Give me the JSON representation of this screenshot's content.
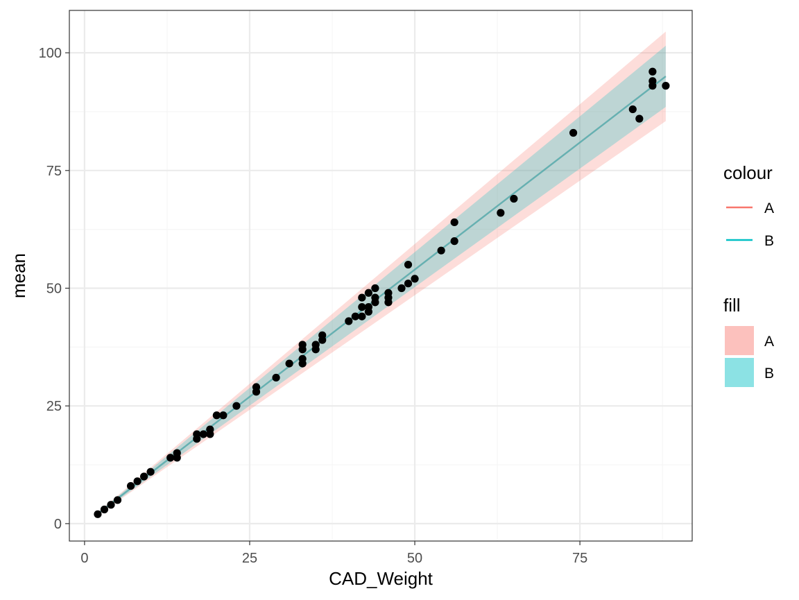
{
  "chart_data": {
    "type": "scatter",
    "xlabel": "CAD_Weight",
    "ylabel": "mean",
    "x_ticks": [
      "0",
      "25",
      "50",
      "75"
    ],
    "y_ticks": [
      "0",
      "25",
      "50",
      "75",
      "100"
    ],
    "x_tick_values": [
      0,
      25,
      50,
      75
    ],
    "y_tick_values": [
      0,
      25,
      50,
      75,
      100
    ],
    "xlim": [
      -2.3,
      92
    ],
    "ylim": [
      -3.7,
      109
    ],
    "grid": true,
    "legend_position": "right",
    "points": [
      [
        2,
        2
      ],
      [
        3,
        3
      ],
      [
        4,
        4
      ],
      [
        5,
        5
      ],
      [
        7,
        8
      ],
      [
        8,
        9
      ],
      [
        9,
        10
      ],
      [
        10,
        11
      ],
      [
        13,
        14
      ],
      [
        14,
        14
      ],
      [
        14,
        15
      ],
      [
        17,
        18
      ],
      [
        17,
        19
      ],
      [
        18,
        19
      ],
      [
        19,
        19
      ],
      [
        19,
        20
      ],
      [
        20,
        23
      ],
      [
        21,
        23
      ],
      [
        23,
        25
      ],
      [
        26,
        28
      ],
      [
        26,
        29
      ],
      [
        29,
        31
      ],
      [
        31,
        34
      ],
      [
        33,
        34
      ],
      [
        33,
        35
      ],
      [
        33,
        37
      ],
      [
        33,
        38
      ],
      [
        35,
        37
      ],
      [
        35,
        38
      ],
      [
        36,
        39
      ],
      [
        36,
        40
      ],
      [
        40,
        43
      ],
      [
        41,
        44
      ],
      [
        42,
        44
      ],
      [
        42,
        46
      ],
      [
        42,
        48
      ],
      [
        43,
        45
      ],
      [
        43,
        46
      ],
      [
        43,
        49
      ],
      [
        44,
        47
      ],
      [
        44,
        48
      ],
      [
        44,
        50
      ],
      [
        46,
        47
      ],
      [
        46,
        48
      ],
      [
        46,
        49
      ],
      [
        48,
        50
      ],
      [
        49,
        51
      ],
      [
        49,
        55
      ],
      [
        50,
        52
      ],
      [
        54,
        58
      ],
      [
        56,
        60
      ],
      [
        56,
        64
      ],
      [
        63,
        66
      ],
      [
        65,
        69
      ],
      [
        74,
        83
      ],
      [
        83,
        88
      ],
      [
        84,
        86
      ],
      [
        86,
        93
      ],
      [
        86,
        94
      ],
      [
        86,
        96
      ],
      [
        88,
        93
      ]
    ],
    "series": [
      {
        "name": "A",
        "color": "#F8766D",
        "fill": "#F8766D",
        "x": [
          2,
          88
        ],
        "y": [
          2.1,
          95.0
        ],
        "ci_lower": [
          1.8,
          85.5
        ],
        "ci_upper": [
          2.4,
          104.5
        ]
      },
      {
        "name": "B",
        "color": "#00BFC4",
        "fill": "#00BFC4",
        "x": [
          2,
          88
        ],
        "y": [
          2.1,
          95.0
        ],
        "ci_lower": [
          1.9,
          88.5
        ],
        "ci_upper": [
          2.3,
          101.5
        ]
      }
    ],
    "colors": {
      "A": "#F8766D",
      "B": "#00BFC4",
      "fit_line": "#3BA5A3",
      "points": "#000000",
      "panel_border": "#333333",
      "grid_major": "#EBEBEB",
      "grid_minor": "#F5F5F5"
    },
    "legends": [
      {
        "title": "colour",
        "entries": [
          "A",
          "B"
        ]
      },
      {
        "title": "fill",
        "entries": [
          "A",
          "B"
        ]
      }
    ]
  }
}
